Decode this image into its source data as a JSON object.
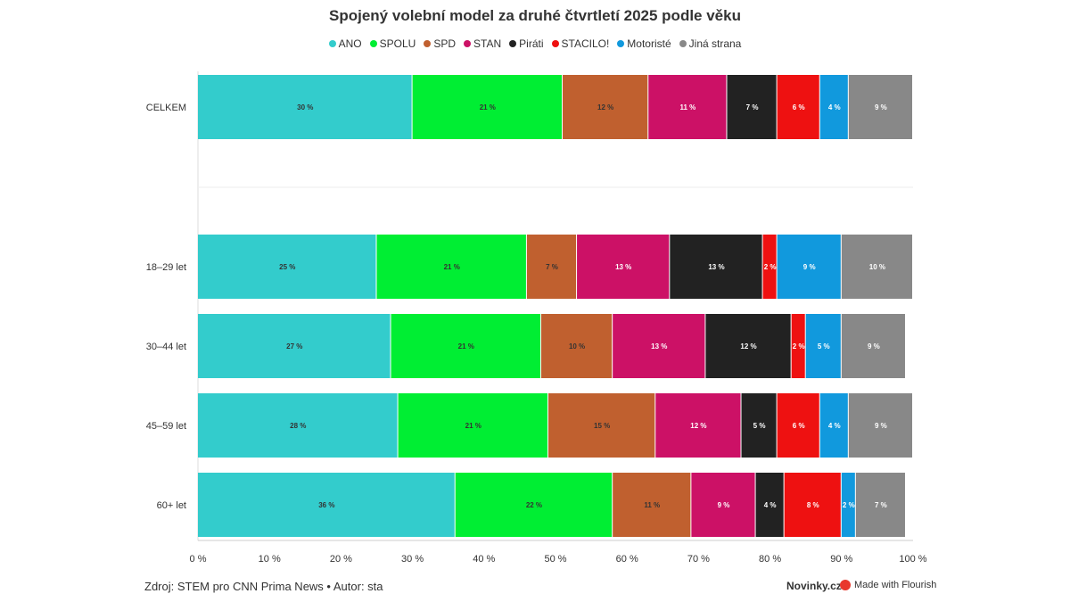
{
  "chart_data": {
    "type": "bar",
    "stacked": true,
    "orientation": "horizontal",
    "title": "Spojený volební model za druhé čtvrtletí 2025 podle věku",
    "categories": [
      "CELKEM",
      "18–29 let",
      "30–44 let",
      "45–59 let",
      "60+ let"
    ],
    "series": [
      {
        "name": "ANO",
        "color": "#33CCCC",
        "values": [
          30,
          25,
          27,
          28,
          36
        ]
      },
      {
        "name": "SPOLU",
        "color": "#00EE33",
        "values": [
          21,
          21,
          21,
          21,
          22
        ]
      },
      {
        "name": "SPD",
        "color": "#C0602F",
        "values": [
          12,
          7,
          10,
          15,
          11
        ]
      },
      {
        "name": "STAN",
        "color": "#CC1166",
        "values": [
          11,
          13,
          13,
          12,
          9
        ]
      },
      {
        "name": "Piráti",
        "color": "#222222",
        "values": [
          7,
          13,
          12,
          5,
          4
        ]
      },
      {
        "name": "STACILO!",
        "color": "#EE1111",
        "values": [
          6,
          2,
          2,
          6,
          8
        ]
      },
      {
        "name": "Motoristé",
        "color": "#1199DD",
        "values": [
          4,
          9,
          5,
          4,
          2
        ]
      },
      {
        "name": "Jiná strana",
        "color": "#888888",
        "values": [
          9,
          10,
          9,
          9,
          7
        ]
      }
    ],
    "xlim": [
      0,
      100
    ],
    "x_ticks": [
      "0 %",
      "10 %",
      "20 %",
      "30 %",
      "40 %",
      "50 %",
      "60 %",
      "70 %",
      "80 %",
      "90 %",
      "100 %"
    ],
    "value_suffix": " %",
    "legend_position": "top-center",
    "grid": false
  },
  "footer": {
    "source": "Zdroj: STEM pro CNN Prima News • Autor: sta",
    "brand": "Novinky.cz",
    "made_with": "Made with Flourish"
  }
}
